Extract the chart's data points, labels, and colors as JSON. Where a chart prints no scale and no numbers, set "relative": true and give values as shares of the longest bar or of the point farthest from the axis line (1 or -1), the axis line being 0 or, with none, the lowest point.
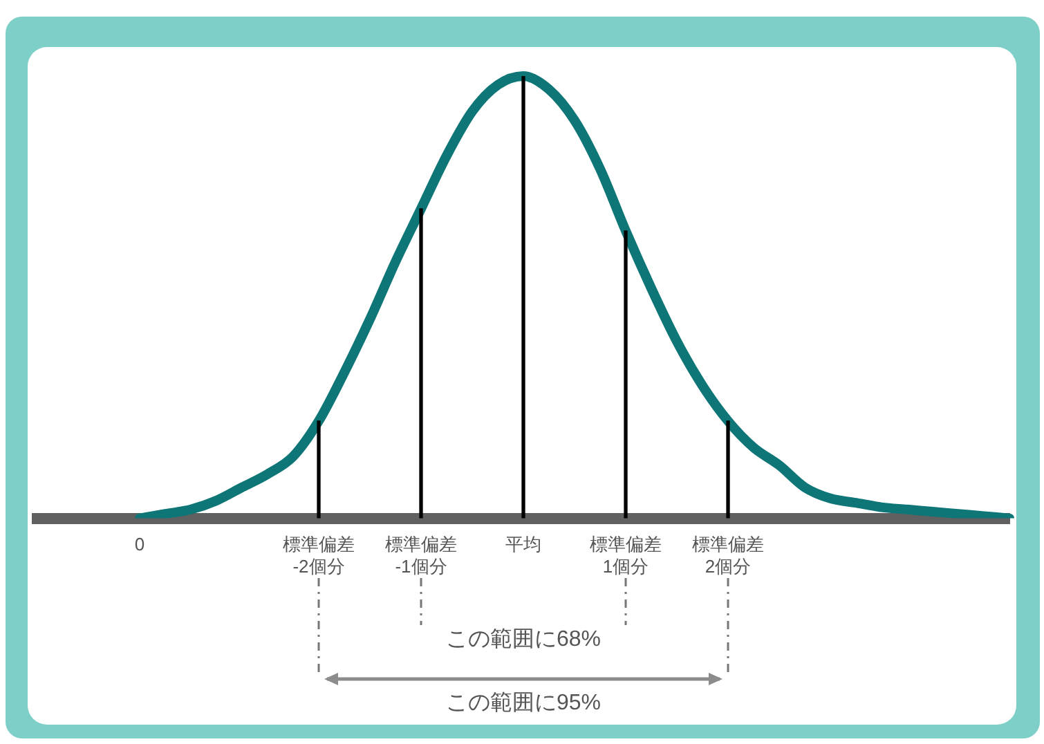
{
  "chart_data": {
    "type": "line",
    "relative": true,
    "categories": [
      null,
      null,
      null,
      null,
      "0",
      null,
      null,
      null,
      null,
      null,
      null,
      "標準偏差\n-2個分",
      null,
      null,
      null,
      "標準偏差\n-1個分",
      null,
      null,
      null,
      "平均",
      null,
      null,
      null,
      "標準偏差\n1個分",
      null,
      null,
      null,
      "標準偏差\n2個分",
      null,
      null,
      null,
      null,
      null,
      null,
      null,
      null,
      null,
      null,
      null
    ],
    "series": [
      {
        "color": "#0e7676",
        "values": [
          null,
          null,
          null,
          null,
          0.0,
          0.01,
          0.02,
          0.04,
          0.07,
          0.1,
          0.14,
          0.22,
          0.33,
          0.45,
          0.58,
          0.7,
          0.82,
          0.92,
          0.98,
          1.0,
          0.97,
          0.9,
          0.79,
          0.65,
          0.52,
          0.4,
          0.3,
          0.22,
          0.16,
          0.12,
          0.07,
          0.045,
          0.035,
          0.025,
          0.02,
          0.015,
          0.01,
          0.005,
          0.0
        ]
      },
      {
        "type": "bar",
        "color": "#000000",
        "values": [
          null,
          null,
          null,
          null,
          null,
          null,
          null,
          null,
          null,
          null,
          null,
          0.22,
          null,
          null,
          null,
          0.7,
          null,
          null,
          null,
          1.0,
          null,
          null,
          null,
          0.65,
          null,
          null,
          null,
          0.22,
          null,
          null,
          null,
          null,
          null,
          null,
          null,
          null,
          null,
          null,
          null
        ]
      }
    ],
    "annotations": [
      "この範囲に68%",
      "この範囲に95%"
    ]
  }
}
